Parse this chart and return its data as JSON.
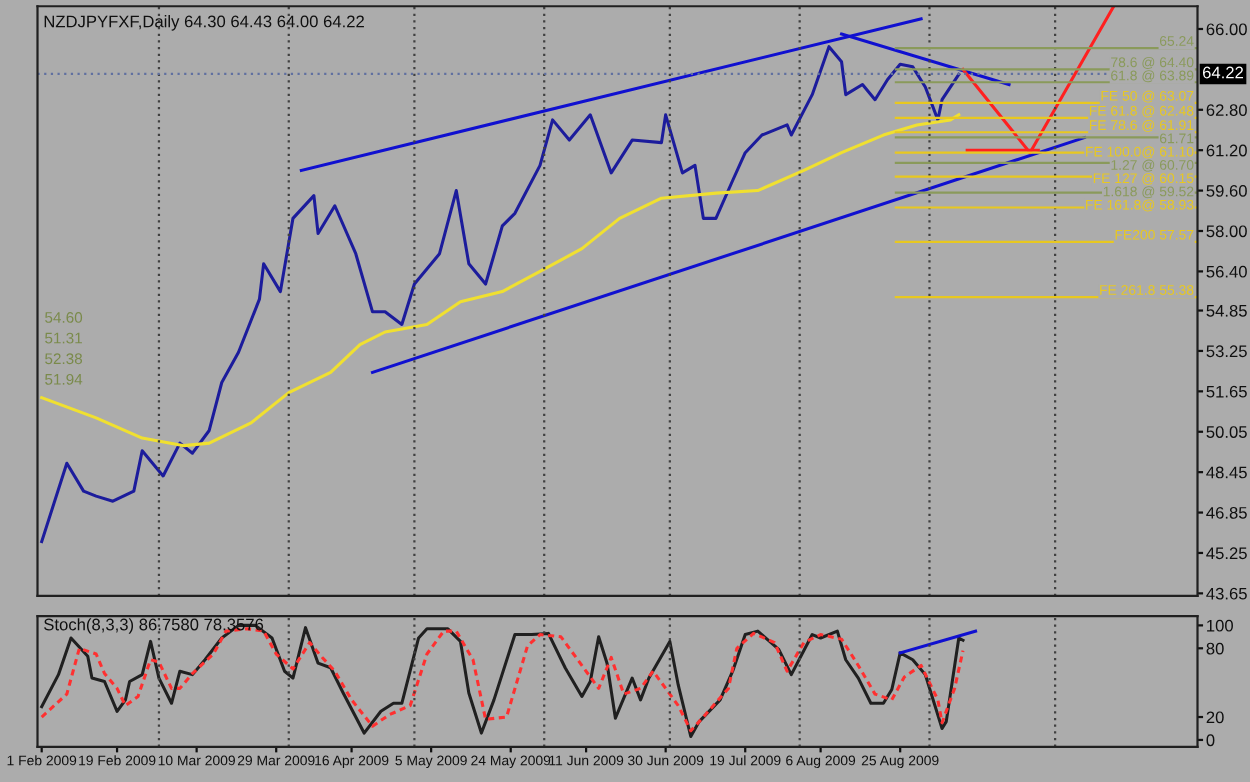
{
  "chart_data": [
    {
      "type": "line",
      "title": "NZDJPYFXF,Daily 64.30 64.43 64.00 64.22",
      "xlim": [
        "2009-01-31",
        "2009-11-04"
      ],
      "ylim": [
        43.55,
        66.9
      ],
      "yticks": [
        {
          "value": 43.65,
          "label": "43.65"
        },
        {
          "value": 45.25,
          "label": "45.25"
        },
        {
          "value": 46.85,
          "label": "46.85"
        },
        {
          "value": 48.45,
          "label": "48.45"
        },
        {
          "value": 50.05,
          "label": "50.05"
        },
        {
          "value": 51.65,
          "label": "51.65"
        },
        {
          "value": 53.25,
          "label": "53.25"
        },
        {
          "value": 54.85,
          "label": "54.85"
        },
        {
          "value": 56.4,
          "label": "56.40"
        },
        {
          "value": 58.0,
          "label": "58.00"
        },
        {
          "value": 59.6,
          "label": "59.60"
        },
        {
          "value": 61.2,
          "label": "61.20"
        },
        {
          "value": 62.8,
          "label": "62.80"
        },
        {
          "value": 66.0,
          "label": "66.00"
        }
      ],
      "tick_labels": "y",
      "series": [
        {
          "color": "#1c1c9c",
          "x": [
            "2009-02-01",
            "2009-02-07",
            "2009-02-11",
            "2009-02-14",
            "2009-02-18",
            "2009-02-23",
            "2009-02-25",
            "2009-03-02",
            "2009-03-06",
            "2009-03-09",
            "2009-03-13",
            "2009-03-16",
            "2009-03-20",
            "2009-03-25",
            "2009-03-26",
            "2009-03-30",
            "2009-04-02",
            "2009-04-07",
            "2009-04-08",
            "2009-04-12",
            "2009-04-17",
            "2009-04-21",
            "2009-04-24",
            "2009-04-28",
            "2009-05-01",
            "2009-05-07",
            "2009-05-11",
            "2009-05-14",
            "2009-05-18",
            "2009-05-22",
            "2009-05-25",
            "2009-05-31",
            "2009-06-03",
            "2009-06-07",
            "2009-06-12",
            "2009-06-17",
            "2009-06-22",
            "2009-06-29",
            "2009-06-30",
            "2009-07-04",
            "2009-07-07",
            "2009-07-09",
            "2009-07-12",
            "2009-07-16",
            "2009-07-19",
            "2009-07-23",
            "2009-07-29",
            "2009-07-30",
            "2009-08-04",
            "2009-08-08",
            "2009-08-11",
            "2009-08-12",
            "2009-08-16",
            "2009-08-19",
            "2009-08-22",
            "2009-08-25",
            "2009-08-28",
            "2009-08-31",
            "2009-09-03",
            "2009-09-04",
            "2009-09-08"
          ],
          "values": [
            45.7,
            48.8,
            47.7,
            47.5,
            47.3,
            47.7,
            49.3,
            48.3,
            49.6,
            49.2,
            50.1,
            52.0,
            53.2,
            55.3,
            56.7,
            55.6,
            58.5,
            59.4,
            57.9,
            59.0,
            57.1,
            54.8,
            54.8,
            54.3,
            55.9,
            57.1,
            59.6,
            56.7,
            55.9,
            58.2,
            58.7,
            60.6,
            62.4,
            61.6,
            62.6,
            60.3,
            61.6,
            61.5,
            62.6,
            60.3,
            60.6,
            58.5,
            58.5,
            60.0,
            61.1,
            61.8,
            62.2,
            61.8,
            63.4,
            65.3,
            64.7,
            63.4,
            63.8,
            63.2,
            64.0,
            64.6,
            64.5,
            63.7,
            62.4,
            63.2,
            64.2
          ]
        },
        {
          "color": "#f0e030",
          "x": [
            "2009-02-01",
            "2009-02-14",
            "2009-02-25",
            "2009-03-07",
            "2009-03-13",
            "2009-03-23",
            "2009-04-01",
            "2009-04-11",
            "2009-04-18",
            "2009-04-24",
            "2009-05-04",
            "2009-05-12",
            "2009-05-22",
            "2009-05-31",
            "2009-06-10",
            "2009-06-19",
            "2009-06-29",
            "2009-07-12",
            "2009-07-22",
            "2009-08-02",
            "2009-08-11",
            "2009-08-21",
            "2009-08-29",
            "2009-09-06",
            "2009-09-08"
          ],
          "values": [
            51.4,
            50.6,
            49.8,
            49.5,
            49.6,
            50.4,
            51.6,
            52.4,
            53.5,
            54.0,
            54.3,
            55.2,
            55.6,
            56.4,
            57.3,
            58.5,
            59.3,
            59.5,
            59.6,
            60.4,
            61.1,
            61.8,
            62.2,
            62.4,
            62.6
          ]
        },
        {
          "color": "#1010d0",
          "x": [
            "2009-04-04",
            "2009-08-30"
          ],
          "values": [
            60.4,
            66.4
          ]
        },
        {
          "color": "#1010d0",
          "x": [
            "2009-04-21",
            "2009-10-08"
          ],
          "values": [
            52.4,
            61.7
          ]
        },
        {
          "color": "#1010d0",
          "x": [
            "2009-08-11",
            "2009-09-20"
          ],
          "values": [
            65.8,
            63.8
          ]
        },
        {
          "color": "#ff2020",
          "x": [
            "2009-09-09",
            "2009-09-25",
            "2009-10-15"
          ],
          "values": [
            64.4,
            61.1,
            66.9
          ]
        },
        {
          "color": "#ff2020",
          "x": [
            "2009-09-10",
            "2009-09-27"
          ],
          "values": [
            61.2,
            61.2
          ]
        }
      ],
      "ref_lines": [
        {
          "axis": "x",
          "value": "2009-03-01",
          "color": "#404040",
          "line_style": "dotted"
        },
        {
          "axis": "x",
          "value": "2009-04-01",
          "color": "#404040",
          "line_style": "dotted"
        },
        {
          "axis": "x",
          "value": "2009-05-01",
          "color": "#404040",
          "line_style": "dotted"
        },
        {
          "axis": "x",
          "value": "2009-06-01",
          "color": "#404040",
          "line_style": "dotted"
        },
        {
          "axis": "x",
          "value": "2009-07-01",
          "color": "#404040",
          "line_style": "dotted"
        },
        {
          "axis": "x",
          "value": "2009-08-01",
          "color": "#404040",
          "line_style": "dotted"
        },
        {
          "axis": "x",
          "value": "2009-09-01",
          "color": "#404040",
          "line_style": "dotted"
        },
        {
          "axis": "x",
          "value": "2009-10-01",
          "color": "#404040",
          "line_style": "dotted"
        },
        {
          "axis": "y",
          "value": 64.22,
          "label": "64.22",
          "color": "#6070a0",
          "line_style": "dotted"
        },
        {
          "axis": "y",
          "value": 65.24,
          "label": "65.24",
          "color": "#8a9a5b",
          "line_style": "solid"
        },
        {
          "axis": "y",
          "value": 64.4,
          "label": "78.6 @ 64.40",
          "color": "#8a9a5b",
          "line_style": "solid"
        },
        {
          "axis": "y",
          "value": 63.89,
          "label": "61.8 @ 63.89",
          "color": "#8a9a5b",
          "line_style": "solid"
        },
        {
          "axis": "y",
          "value": 63.07,
          "label": "FE 50 @ 63.07",
          "color": "#e8c820",
          "line_style": "solid"
        },
        {
          "axis": "y",
          "value": 62.48,
          "label": "FE 61.8 @ 62.48",
          "color": "#e8c820",
          "line_style": "solid"
        },
        {
          "axis": "y",
          "value": 61.91,
          "label": "FE 78.6 @ 61.91",
          "color": "#e8c820",
          "line_style": "solid"
        },
        {
          "axis": "y",
          "value": 61.71,
          "label": "61.71",
          "color": "#8a9a5b",
          "line_style": "solid"
        },
        {
          "axis": "y",
          "value": 61.1,
          "label": "FE 100.0@ 61.10",
          "color": "#e8c820",
          "line_style": "solid"
        },
        {
          "axis": "y",
          "value": 60.7,
          "label": "1.27 @ 60.70",
          "color": "#8a9a5b",
          "line_style": "solid"
        },
        {
          "axis": "y",
          "value": 60.15,
          "label": "FE 127 @ 60.15",
          "color": "#e8c820",
          "line_style": "solid"
        },
        {
          "axis": "y",
          "value": 59.52,
          "label": "1.618 @ 59.52",
          "color": "#8a9a5b",
          "line_style": "solid"
        },
        {
          "axis": "y",
          "value": 58.93,
          "label": "FE 161.8@ 58.93",
          "color": "#e8c820",
          "line_style": "solid"
        },
        {
          "axis": "y",
          "value": 57.57,
          "label": "FE200 57.57",
          "color": "#e8c820",
          "line_style": "solid"
        },
        {
          "axis": "y",
          "value": 55.38,
          "label": "FE 261.8 55.38",
          "color": "#e8c820",
          "line_style": "solid"
        }
      ],
      "annotations": [
        "54.60",
        "51.31",
        "52.38",
        "51.94"
      ]
    },
    {
      "type": "line",
      "title": "Stoch(8,3,3) 86.7580 78.3576",
      "xlim": [
        "2009-01-31",
        "2009-11-04"
      ],
      "ylim": [
        -6,
        108
      ],
      "yticks": [
        0,
        20,
        80,
        100
      ],
      "xticks": [
        {
          "value": "2009-02-01",
          "label": "1 Feb 2009"
        },
        {
          "value": "2009-02-19",
          "label": "19 Feb 2009"
        },
        {
          "value": "2009-03-10",
          "label": "10 Mar 2009"
        },
        {
          "value": "2009-03-29",
          "label": "29 Mar 2009"
        },
        {
          "value": "2009-04-16",
          "label": "16 Apr 2009"
        },
        {
          "value": "2009-05-05",
          "label": "5 May 2009"
        },
        {
          "value": "2009-05-24",
          "label": "24 May 2009"
        },
        {
          "value": "2009-06-11",
          "label": "11 Jun 2009"
        },
        {
          "value": "2009-06-30",
          "label": "30 Jun 2009"
        },
        {
          "value": "2009-07-19",
          "label": "19 Jul 2009"
        },
        {
          "value": "2009-08-06",
          "label": "6 Aug 2009"
        },
        {
          "value": "2009-08-25",
          "label": "25 Aug 2009"
        }
      ],
      "series": [
        {
          "color": "#202020",
          "line_style": "solid",
          "x": [
            "2009-02-01",
            "2009-02-05",
            "2009-02-08",
            "2009-02-12",
            "2009-02-13",
            "2009-02-16",
            "2009-02-19",
            "2009-02-21",
            "2009-02-22",
            "2009-02-25",
            "2009-02-27",
            "2009-03-01",
            "2009-03-04",
            "2009-03-06",
            "2009-03-09",
            "2009-03-12",
            "2009-03-16",
            "2009-03-20",
            "2009-03-24",
            "2009-03-28",
            "2009-03-31",
            "2009-04-02",
            "2009-04-05",
            "2009-04-08",
            "2009-04-11",
            "2009-04-14",
            "2009-04-19",
            "2009-04-23",
            "2009-04-26",
            "2009-04-28",
            "2009-05-02",
            "2009-05-04",
            "2009-05-09",
            "2009-05-12",
            "2009-05-14",
            "2009-05-17",
            "2009-05-20",
            "2009-05-25",
            "2009-05-29",
            "2009-06-02",
            "2009-06-06",
            "2009-06-10",
            "2009-06-12",
            "2009-06-14",
            "2009-06-16",
            "2009-06-18",
            "2009-06-22",
            "2009-06-24",
            "2009-06-26",
            "2009-07-01",
            "2009-07-03",
            "2009-07-06",
            "2009-07-08",
            "2009-07-13",
            "2009-07-16",
            "2009-07-19",
            "2009-07-22",
            "2009-07-27",
            "2009-07-30",
            "2009-08-04",
            "2009-08-06",
            "2009-08-10",
            "2009-08-12",
            "2009-08-15",
            "2009-08-18",
            "2009-08-21",
            "2009-08-23",
            "2009-08-25",
            "2009-08-28",
            "2009-08-31",
            "2009-09-04",
            "2009-09-05",
            "2009-09-08",
            "2009-09-09"
          ],
          "values": [
            29,
            57,
            89,
            73,
            54,
            51,
            25,
            35,
            51,
            57,
            86,
            54,
            32,
            60,
            57,
            70,
            89,
            100,
            100,
            89,
            60,
            54,
            98,
            67,
            63,
            41,
            6,
            25,
            32,
            32,
            89,
            97,
            97,
            86,
            41,
            6,
            35,
            92,
            92,
            93,
            63,
            38,
            51,
            90,
            67,
            19,
            54,
            35,
            54,
            86,
            48,
            3,
            16,
            35,
            60,
            92,
            95,
            79,
            57,
            92,
            89,
            95,
            70,
            54,
            32,
            32,
            44,
            76,
            70,
            57,
            10,
            16,
            89,
            87
          ]
        },
        {
          "color": "#ff3030",
          "line_style": "dashed",
          "x": [
            "2009-02-01",
            "2009-02-07",
            "2009-02-10",
            "2009-02-14",
            "2009-02-16",
            "2009-02-19",
            "2009-02-21",
            "2009-02-24",
            "2009-02-27",
            "2009-03-01",
            "2009-03-04",
            "2009-03-06",
            "2009-03-09",
            "2009-03-14",
            "2009-03-17",
            "2009-03-22",
            "2009-03-26",
            "2009-03-29",
            "2009-04-02",
            "2009-04-06",
            "2009-04-09",
            "2009-04-12",
            "2009-04-16",
            "2009-04-21",
            "2009-04-25",
            "2009-04-30",
            "2009-05-04",
            "2009-05-08",
            "2009-05-11",
            "2009-05-15",
            "2009-05-18",
            "2009-05-23",
            "2009-05-28",
            "2009-05-31",
            "2009-06-05",
            "2009-06-09",
            "2009-06-14",
            "2009-06-17",
            "2009-06-20",
            "2009-06-24",
            "2009-06-27",
            "2009-07-03",
            "2009-07-06",
            "2009-07-09",
            "2009-07-15",
            "2009-07-17",
            "2009-07-21",
            "2009-07-26",
            "2009-07-29",
            "2009-08-02",
            "2009-08-06",
            "2009-08-11",
            "2009-08-15",
            "2009-08-19",
            "2009-08-23",
            "2009-08-26",
            "2009-08-30",
            "2009-09-03",
            "2009-09-04",
            "2009-09-07",
            "2009-09-09"
          ],
          "values": [
            20,
            40,
            80,
            75,
            58,
            45,
            30,
            38,
            70,
            68,
            45,
            45,
            58,
            75,
            95,
            97,
            95,
            75,
            62,
            85,
            72,
            60,
            35,
            12,
            22,
            30,
            75,
            95,
            95,
            70,
            18,
            20,
            82,
            92,
            90,
            70,
            45,
            72,
            40,
            45,
            60,
            30,
            8,
            20,
            45,
            80,
            93,
            85,
            60,
            85,
            92,
            88,
            65,
            40,
            35,
            55,
            65,
            35,
            15,
            45,
            78
          ]
        },
        {
          "color": "#1010d0",
          "line_style": "solid",
          "x": [
            "2009-08-25",
            "2009-09-12"
          ],
          "values": [
            76,
            95
          ]
        }
      ],
      "ref_lines": [
        {
          "axis": "x",
          "value": "2009-03-01",
          "color": "#404040",
          "line_style": "dotted"
        },
        {
          "axis": "x",
          "value": "2009-04-01",
          "color": "#404040",
          "line_style": "dotted"
        },
        {
          "axis": "x",
          "value": "2009-05-01",
          "color": "#404040",
          "line_style": "dotted"
        },
        {
          "axis": "x",
          "value": "2009-06-01",
          "color": "#404040",
          "line_style": "dotted"
        },
        {
          "axis": "x",
          "value": "2009-07-01",
          "color": "#404040",
          "line_style": "dotted"
        },
        {
          "axis": "x",
          "value": "2009-08-01",
          "color": "#404040",
          "line_style": "dotted"
        },
        {
          "axis": "x",
          "value": "2009-09-01",
          "color": "#404040",
          "line_style": "dotted"
        },
        {
          "axis": "x",
          "value": "2009-10-01",
          "color": "#404040",
          "line_style": "dotted"
        }
      ]
    }
  ]
}
